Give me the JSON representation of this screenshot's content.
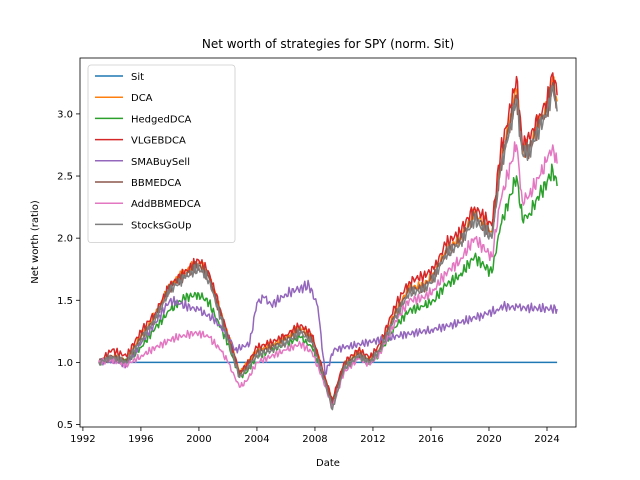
{
  "chart_data": {
    "type": "line",
    "title": "Net worth of strategies for SPY (norm. Sit)",
    "xlabel": "Date",
    "ylabel": "Net worth (ratio)",
    "xlim": [
      1991.8,
      2026.0
    ],
    "ylim": [
      0.48,
      3.45
    ],
    "x_ticks": [
      1992,
      1996,
      2000,
      2004,
      2008,
      2012,
      2016,
      2020,
      2024
    ],
    "y_ticks": [
      0.5,
      1.0,
      1.5,
      2.0,
      2.5,
      3.0
    ],
    "grid": false,
    "legend_position": "top-left",
    "series": [
      {
        "name": "Sit",
        "color": "#1f77b4",
        "x": [
          1993.1,
          2024.7
        ],
        "y": [
          1.0,
          1.0
        ]
      },
      {
        "name": "DCA",
        "color": "#ff7f0e",
        "x": [
          1993.1,
          1994.0,
          1995.0,
          1996.0,
          1997.0,
          1998.0,
          1999.0,
          2000.0,
          2000.7,
          2001.5,
          2002.0,
          2002.8,
          2003.3,
          2004.0,
          2005.0,
          2006.0,
          2007.0,
          2007.8,
          2008.5,
          2009.2,
          2010.0,
          2011.0,
          2011.8,
          2012.5,
          2013.5,
          2014.5,
          2015.5,
          2016.2,
          2017.0,
          2018.0,
          2019.0,
          2020.2,
          2020.8,
          2021.5,
          2021.9,
          2022.3,
          2022.8,
          2023.5,
          2024.0,
          2024.4,
          2024.7
        ],
        "y": [
          1.0,
          1.05,
          1.02,
          1.22,
          1.38,
          1.62,
          1.72,
          1.8,
          1.7,
          1.4,
          1.22,
          0.92,
          0.98,
          1.1,
          1.14,
          1.2,
          1.28,
          1.2,
          0.95,
          0.68,
          0.98,
          1.08,
          1.02,
          1.12,
          1.4,
          1.6,
          1.62,
          1.72,
          1.9,
          2.0,
          2.2,
          2.05,
          2.6,
          3.0,
          3.2,
          2.72,
          2.75,
          2.95,
          3.05,
          3.3,
          3.1
        ]
      },
      {
        "name": "HedgedDCA",
        "color": "#2ca02c",
        "x": [
          1993.1,
          1994.0,
          1995.0,
          1996.0,
          1997.0,
          1998.0,
          1999.0,
          2000.0,
          2000.7,
          2001.5,
          2002.0,
          2002.8,
          2003.3,
          2004.0,
          2005.0,
          2006.0,
          2007.0,
          2007.8,
          2008.5,
          2009.2,
          2010.0,
          2011.0,
          2011.8,
          2012.5,
          2013.5,
          2014.5,
          2015.5,
          2016.2,
          2017.0,
          2018.0,
          2019.0,
          2020.2,
          2020.8,
          2021.5,
          2021.9,
          2022.3,
          2022.8,
          2023.5,
          2024.0,
          2024.4,
          2024.7
        ],
        "y": [
          1.0,
          1.03,
          1.0,
          1.12,
          1.28,
          1.42,
          1.52,
          1.55,
          1.48,
          1.28,
          1.15,
          0.88,
          0.92,
          1.05,
          1.1,
          1.15,
          1.2,
          1.12,
          0.9,
          0.65,
          0.95,
          1.05,
          1.0,
          1.08,
          1.28,
          1.42,
          1.45,
          1.5,
          1.62,
          1.7,
          1.85,
          1.72,
          2.1,
          2.35,
          2.5,
          2.15,
          2.2,
          2.35,
          2.45,
          2.55,
          2.42
        ]
      },
      {
        "name": "VLGEBDCA",
        "color": "#d62728",
        "x": [
          1993.1,
          1994.0,
          1995.0,
          1996.0,
          1997.0,
          1998.0,
          1999.0,
          2000.0,
          2000.7,
          2001.5,
          2002.0,
          2002.8,
          2003.3,
          2004.0,
          2005.0,
          2006.0,
          2007.0,
          2007.8,
          2008.5,
          2009.2,
          2010.0,
          2011.0,
          2011.8,
          2012.5,
          2013.5,
          2014.5,
          2015.5,
          2016.2,
          2017.0,
          2018.0,
          2019.0,
          2020.2,
          2020.8,
          2021.5,
          2021.9,
          2022.3,
          2022.8,
          2023.5,
          2024.0,
          2024.4,
          2024.7
        ],
        "y": [
          1.0,
          1.1,
          1.05,
          1.25,
          1.4,
          1.62,
          1.72,
          1.82,
          1.72,
          1.42,
          1.22,
          0.92,
          0.98,
          1.12,
          1.16,
          1.22,
          1.3,
          1.22,
          0.95,
          0.7,
          1.0,
          1.1,
          1.04,
          1.15,
          1.45,
          1.65,
          1.7,
          1.75,
          1.95,
          2.05,
          2.25,
          2.1,
          2.7,
          3.05,
          3.3,
          2.75,
          2.8,
          3.0,
          3.1,
          3.33,
          3.15
        ]
      },
      {
        "name": "SMABuySell",
        "color": "#9467bd",
        "x": [
          1993.1,
          1994.0,
          1995.0,
          1996.0,
          1997.0,
          1998.0,
          1998.7,
          2000.0,
          2001.0,
          2002.0,
          2002.5,
          2003.5,
          2004.0,
          2004.5,
          2005.0,
          2006.0,
          2007.0,
          2007.6,
          2008.2,
          2008.7,
          2009.3,
          2010.0,
          2012.0,
          2014.0,
          2016.0,
          2018.0,
          2019.5,
          2020.5,
          2021.0,
          2022.0,
          2024.7
        ],
        "y": [
          1.0,
          1.02,
          0.98,
          1.15,
          1.32,
          1.5,
          1.47,
          1.42,
          1.35,
          1.22,
          1.1,
          1.15,
          1.48,
          1.52,
          1.46,
          1.55,
          1.6,
          1.62,
          1.45,
          0.9,
          1.1,
          1.12,
          1.17,
          1.22,
          1.26,
          1.32,
          1.38,
          1.42,
          1.45,
          1.44,
          1.43
        ]
      },
      {
        "name": "BBMEDCA",
        "color": "#8c564b",
        "x": [
          1993.1,
          1994.0,
          1995.0,
          1996.0,
          1997.0,
          1998.0,
          1999.0,
          2000.0,
          2000.7,
          2001.5,
          2002.0,
          2002.8,
          2003.3,
          2004.0,
          2005.0,
          2006.0,
          2007.0,
          2007.8,
          2008.5,
          2009.2,
          2010.0,
          2011.0,
          2011.8,
          2012.5,
          2013.5,
          2014.5,
          2015.5,
          2016.2,
          2017.0,
          2018.0,
          2019.0,
          2020.2,
          2020.8,
          2021.5,
          2021.9,
          2022.3,
          2022.8,
          2023.5,
          2024.0,
          2024.4,
          2024.7
        ],
        "y": [
          1.0,
          1.05,
          1.01,
          1.2,
          1.36,
          1.6,
          1.7,
          1.78,
          1.68,
          1.38,
          1.2,
          0.9,
          0.96,
          1.08,
          1.12,
          1.18,
          1.26,
          1.18,
          0.93,
          0.67,
          0.97,
          1.07,
          1.01,
          1.11,
          1.38,
          1.58,
          1.6,
          1.7,
          1.88,
          1.98,
          2.18,
          2.02,
          2.58,
          2.95,
          3.15,
          2.7,
          2.72,
          2.92,
          3.02,
          3.25,
          3.05
        ]
      },
      {
        "name": "AddBBMEDCA",
        "color": "#e377c2",
        "x": [
          1993.1,
          1994.0,
          1995.0,
          1996.0,
          1997.0,
          1998.0,
          1999.0,
          2000.0,
          2000.7,
          2001.5,
          2002.0,
          2002.8,
          2003.3,
          2004.0,
          2005.0,
          2006.0,
          2007.0,
          2007.8,
          2008.5,
          2009.2,
          2010.0,
          2011.0,
          2011.8,
          2012.5,
          2013.5,
          2014.5,
          2015.5,
          2016.2,
          2017.0,
          2018.0,
          2019.0,
          2020.2,
          2020.8,
          2021.5,
          2021.9,
          2022.3,
          2022.8,
          2023.5,
          2024.0,
          2024.4,
          2024.7
        ],
        "y": [
          1.0,
          1.02,
          0.98,
          1.05,
          1.12,
          1.18,
          1.22,
          1.24,
          1.2,
          1.1,
          1.0,
          0.8,
          0.85,
          1.0,
          1.05,
          1.1,
          1.15,
          1.08,
          0.88,
          0.64,
          0.92,
          1.03,
          0.98,
          1.08,
          1.32,
          1.5,
          1.52,
          1.58,
          1.72,
          1.82,
          2.0,
          1.85,
          2.3,
          2.6,
          2.75,
          2.3,
          2.35,
          2.5,
          2.62,
          2.75,
          2.6
        ]
      },
      {
        "name": "StocksGoUp",
        "color": "#7f7f7f",
        "x": [
          1993.1,
          1994.0,
          1995.0,
          1996.0,
          1997.0,
          1998.0,
          1999.0,
          2000.0,
          2000.7,
          2001.5,
          2002.0,
          2002.8,
          2003.3,
          2004.0,
          2005.0,
          2006.0,
          2007.0,
          2007.8,
          2008.5,
          2009.2,
          2010.0,
          2011.0,
          2011.8,
          2012.5,
          2013.5,
          2014.5,
          2015.5,
          2016.2,
          2017.0,
          2018.0,
          2019.0,
          2020.2,
          2020.8,
          2021.5,
          2021.9,
          2022.3,
          2022.8,
          2023.5,
          2024.0,
          2024.4,
          2024.7
        ],
        "y": [
          1.0,
          1.04,
          1.0,
          1.18,
          1.35,
          1.58,
          1.68,
          1.76,
          1.66,
          1.36,
          1.18,
          0.88,
          0.94,
          1.06,
          1.1,
          1.16,
          1.24,
          1.16,
          0.92,
          0.62,
          0.95,
          1.05,
          1.0,
          1.1,
          1.36,
          1.56,
          1.58,
          1.68,
          1.86,
          1.96,
          2.15,
          2.0,
          2.55,
          2.92,
          3.12,
          2.68,
          2.7,
          2.9,
          3.0,
          3.22,
          3.02
        ]
      }
    ]
  }
}
